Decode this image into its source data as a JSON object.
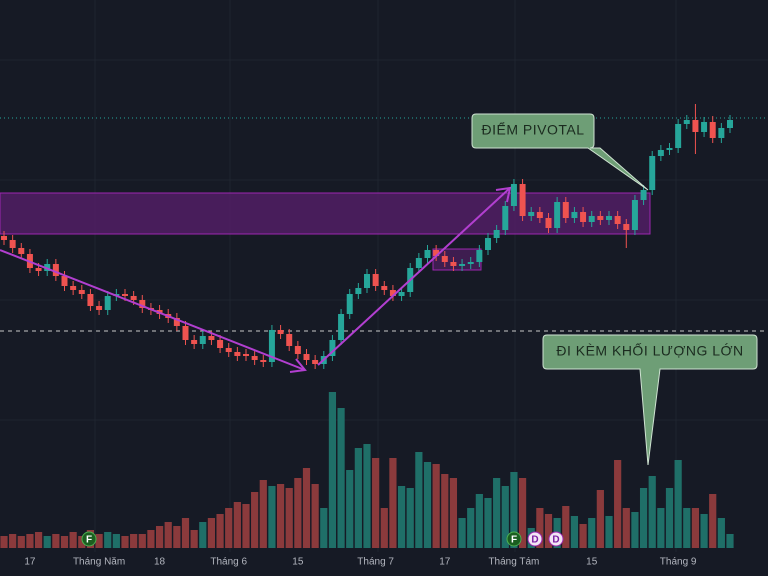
{
  "chart_data": {
    "type": "candlestick",
    "categories": [
      null,
      null,
      null,
      "17",
      null,
      null,
      null,
      null,
      null,
      null,
      null,
      "Tháng Năm",
      null,
      null,
      null,
      null,
      null,
      null,
      "18",
      null,
      null,
      null,
      null,
      null,
      null,
      null,
      "Tháng 6",
      null,
      null,
      null,
      null,
      null,
      null,
      null,
      "15",
      null,
      null,
      null,
      null,
      null,
      null,
      null,
      null,
      "Tháng 7",
      null,
      null,
      null,
      null,
      null,
      null,
      null,
      "17",
      null,
      null,
      null,
      null,
      null,
      null,
      null,
      "Tháng Tám",
      null,
      null,
      null,
      null,
      null,
      null,
      null,
      null,
      "15",
      null,
      null,
      null,
      null,
      null,
      null,
      null,
      null,
      null,
      "Tháng 9",
      null,
      null,
      null,
      null,
      null,
      null
    ],
    "open": [
      34.0,
      33.6,
      32.8,
      32.2,
      30.8,
      30.5,
      31.2,
      30.0,
      29.0,
      28.6,
      28.2,
      27.0,
      26.6,
      28.0,
      28.2,
      28.0,
      27.6,
      26.8,
      26.6,
      26.2,
      25.8,
      25.0,
      23.6,
      23.2,
      24.0,
      23.6,
      22.8,
      22.4,
      22.2,
      22.0,
      21.6,
      21.4,
      24.6,
      24.2,
      23.0,
      22.2,
      21.6,
      21.2,
      22.0,
      23.6,
      26.2,
      28.2,
      28.8,
      30.2,
      29.0,
      28.6,
      28.0,
      28.4,
      30.8,
      31.8,
      32.6,
      32.0,
      31.4,
      31.0,
      31.2,
      31.4,
      32.6,
      33.8,
      34.6,
      37.0,
      39.2,
      36.0,
      36.4,
      35.8,
      34.8,
      37.4,
      35.8,
      36.4,
      35.4,
      36.0,
      35.6,
      36.0,
      35.2,
      34.6,
      37.6,
      38.6,
      42.0,
      42.6,
      42.8,
      45.2,
      45.6,
      44.4,
      45.4,
      43.8,
      44.8
    ],
    "high": [
      34.5,
      34.1,
      33.3,
      32.7,
      31.3,
      31.7,
      31.7,
      30.5,
      29.5,
      29.1,
      28.7,
      27.5,
      28.5,
      28.7,
      28.7,
      28.5,
      28.1,
      27.3,
      27.1,
      26.7,
      26.3,
      25.5,
      24.1,
      24.5,
      24.5,
      24.1,
      23.3,
      22.9,
      22.7,
      22.5,
      22.1,
      25.1,
      25.1,
      24.7,
      23.5,
      22.7,
      22.1,
      22.5,
      24.1,
      26.7,
      28.7,
      29.3,
      30.7,
      30.7,
      29.5,
      29.1,
      28.9,
      31.3,
      32.3,
      33.1,
      33.1,
      32.5,
      31.9,
      31.7,
      31.9,
      33.1,
      34.3,
      35.1,
      37.5,
      39.7,
      39.7,
      36.9,
      36.9,
      36.3,
      37.9,
      37.9,
      36.9,
      36.9,
      36.5,
      36.5,
      36.5,
      36.5,
      35.7,
      38.1,
      39.1,
      42.5,
      43.1,
      43.3,
      45.7,
      46.1,
      47.2,
      45.9,
      46.0,
      45.3,
      46.1
    ],
    "low": [
      33.1,
      32.3,
      31.7,
      30.3,
      30.0,
      30.0,
      29.5,
      28.5,
      28.1,
      27.7,
      26.5,
      26.1,
      26.1,
      27.5,
      27.5,
      27.1,
      26.3,
      26.1,
      25.7,
      25.3,
      24.5,
      23.1,
      22.7,
      22.7,
      23.1,
      22.3,
      21.9,
      21.5,
      21.5,
      21.1,
      20.9,
      20.9,
      23.7,
      22.5,
      21.7,
      21.1,
      20.7,
      20.7,
      21.5,
      23.1,
      25.7,
      27.7,
      28.3,
      28.5,
      28.1,
      27.5,
      27.5,
      27.9,
      30.3,
      31.3,
      31.5,
      30.9,
      30.5,
      30.5,
      30.7,
      30.9,
      32.1,
      33.3,
      34.1,
      36.5,
      35.5,
      35.5,
      35.3,
      34.3,
      34.3,
      35.3,
      35.3,
      34.9,
      34.9,
      35.1,
      35.1,
      34.7,
      32.8,
      34.1,
      37.1,
      38.1,
      41.5,
      42.1,
      42.3,
      44.7,
      42.2,
      43.9,
      43.3,
      43.3,
      44.3
    ],
    "close": [
      33.6,
      32.8,
      32.2,
      30.8,
      30.5,
      31.2,
      30.0,
      29.0,
      28.6,
      28.2,
      27.0,
      26.6,
      28.0,
      28.2,
      28.0,
      27.6,
      26.8,
      26.6,
      26.2,
      25.8,
      25.0,
      23.6,
      23.2,
      24.0,
      23.6,
      22.8,
      22.4,
      22.0,
      22.0,
      21.6,
      21.4,
      24.6,
      24.2,
      23.0,
      22.2,
      21.6,
      21.2,
      22.0,
      23.6,
      26.2,
      28.2,
      28.8,
      30.2,
      29.0,
      28.6,
      28.0,
      28.4,
      30.8,
      31.8,
      32.6,
      32.0,
      31.4,
      31.0,
      31.2,
      31.4,
      32.6,
      33.8,
      34.6,
      37.0,
      39.2,
      36.0,
      36.4,
      35.8,
      34.8,
      37.4,
      35.8,
      36.4,
      35.4,
      36.0,
      35.6,
      36.0,
      35.2,
      34.6,
      37.6,
      38.6,
      42.0,
      42.6,
      42.8,
      45.2,
      45.6,
      44.4,
      45.4,
      43.8,
      44.8,
      45.6
    ],
    "volume": [
      12,
      14,
      12,
      14,
      16,
      12,
      14,
      12,
      16,
      12,
      18,
      14,
      16,
      14,
      12,
      14,
      14,
      18,
      22,
      26,
      22,
      30,
      18,
      26,
      30,
      34,
      40,
      46,
      44,
      56,
      68,
      62,
      64,
      60,
      70,
      80,
      64,
      40,
      156,
      140,
      78,
      100,
      104,
      90,
      40,
      90,
      62,
      60,
      96,
      86,
      84,
      74,
      70,
      30,
      40,
      54,
      50,
      70,
      62,
      76,
      70,
      20,
      40,
      34,
      30,
      42,
      32,
      24,
      30,
      58,
      32,
      88,
      40,
      36,
      60,
      72,
      40,
      60,
      88,
      40,
      40,
      34,
      54,
      30,
      14
    ],
    "ylim": [
      0,
      57.6
    ],
    "volume_ylim": [
      0,
      548
    ],
    "up_color": "#26a69a",
    "down_color": "#ef5350",
    "volume_up_color": "#1f6f68",
    "volume_down_color": "#8b3a3c",
    "annotations": [
      "ĐIỂM PIVOTAL",
      "ĐI KÈM KHỐI LƯỢNG LỚN"
    ],
    "events": [
      "F",
      "F",
      "D",
      "D"
    ]
  }
}
